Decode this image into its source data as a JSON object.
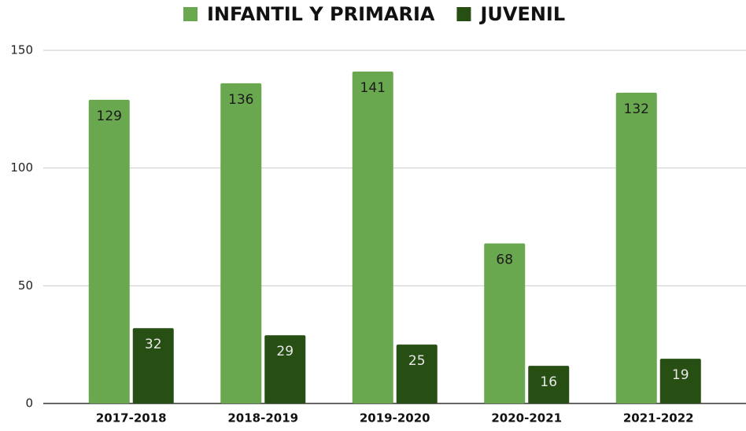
{
  "chart_data": {
    "type": "bar",
    "categories": [
      "2017-2018",
      "2018-2019",
      "2019-2020",
      "2020-2021",
      "2021-2022"
    ],
    "series": [
      {
        "name": "INFANTIL Y PRIMARIA",
        "color": "#6aa84f",
        "values": [
          129,
          136,
          141,
          68,
          132
        ]
      },
      {
        "name": "JUVENIL",
        "color": "#274e13",
        "values": [
          32,
          29,
          25,
          16,
          19
        ]
      }
    ],
    "ylim": [
      0,
      150
    ],
    "yticks": [
      0,
      50,
      100,
      150
    ],
    "grid": true,
    "legend": "top"
  }
}
